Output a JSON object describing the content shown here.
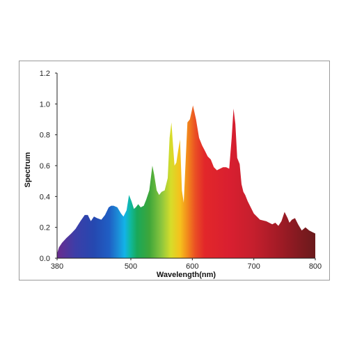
{
  "chart_data": {
    "type": "area",
    "title": "",
    "xlabel": "Wavelength(nm)",
    "ylabel": "Spectrum",
    "xlim": [
      380,
      800
    ],
    "ylim": [
      0,
      1.2
    ],
    "x_ticks": [
      380,
      500,
      600,
      700,
      800
    ],
    "y_ticks": [
      "0.0",
      "0.2",
      "0.4",
      "0.6",
      "0.8",
      "1.0",
      "1.2"
    ],
    "grid": false,
    "legend": "none",
    "fill": "visible-spectrum gradient (violet to dark red)",
    "series": [
      {
        "x": [
          380,
          383,
          388,
          395,
          403,
          410,
          418,
          425,
          430,
          435,
          440,
          445,
          452,
          458,
          464,
          468,
          472,
          478,
          484,
          488,
          493,
          497,
          501,
          505,
          508,
          512,
          516,
          521,
          525,
          530,
          535,
          538,
          542,
          546,
          550,
          555,
          560,
          563,
          566,
          569,
          571,
          574,
          577,
          580,
          583,
          586,
          589,
          592,
          596,
          601,
          606,
          611,
          616,
          620,
          625,
          630,
          635,
          640,
          645,
          650,
          655,
          660,
          664,
          667,
          670,
          673,
          677,
          680,
          683,
          686,
          690,
          695,
          700,
          710,
          720,
          730,
          735,
          740,
          745,
          750,
          755,
          758,
          762,
          767,
          772,
          778,
          784,
          790,
          795,
          800
        ],
        "y": [
          0.03,
          0.07,
          0.1,
          0.13,
          0.16,
          0.19,
          0.24,
          0.28,
          0.28,
          0.24,
          0.27,
          0.26,
          0.25,
          0.28,
          0.33,
          0.34,
          0.34,
          0.33,
          0.29,
          0.27,
          0.31,
          0.41,
          0.37,
          0.32,
          0.33,
          0.35,
          0.33,
          0.34,
          0.38,
          0.44,
          0.6,
          0.54,
          0.44,
          0.41,
          0.43,
          0.44,
          0.52,
          0.78,
          0.88,
          0.71,
          0.6,
          0.62,
          0.7,
          0.77,
          0.44,
          0.36,
          0.62,
          0.88,
          0.9,
          0.99,
          0.9,
          0.78,
          0.73,
          0.7,
          0.66,
          0.64,
          0.59,
          0.57,
          0.58,
          0.59,
          0.59,
          0.58,
          0.78,
          0.97,
          0.87,
          0.65,
          0.61,
          0.48,
          0.43,
          0.41,
          0.37,
          0.33,
          0.29,
          0.25,
          0.24,
          0.22,
          0.23,
          0.21,
          0.24,
          0.3,
          0.26,
          0.23,
          0.25,
          0.26,
          0.22,
          0.18,
          0.2,
          0.18,
          0.17,
          0.16
        ]
      }
    ]
  }
}
